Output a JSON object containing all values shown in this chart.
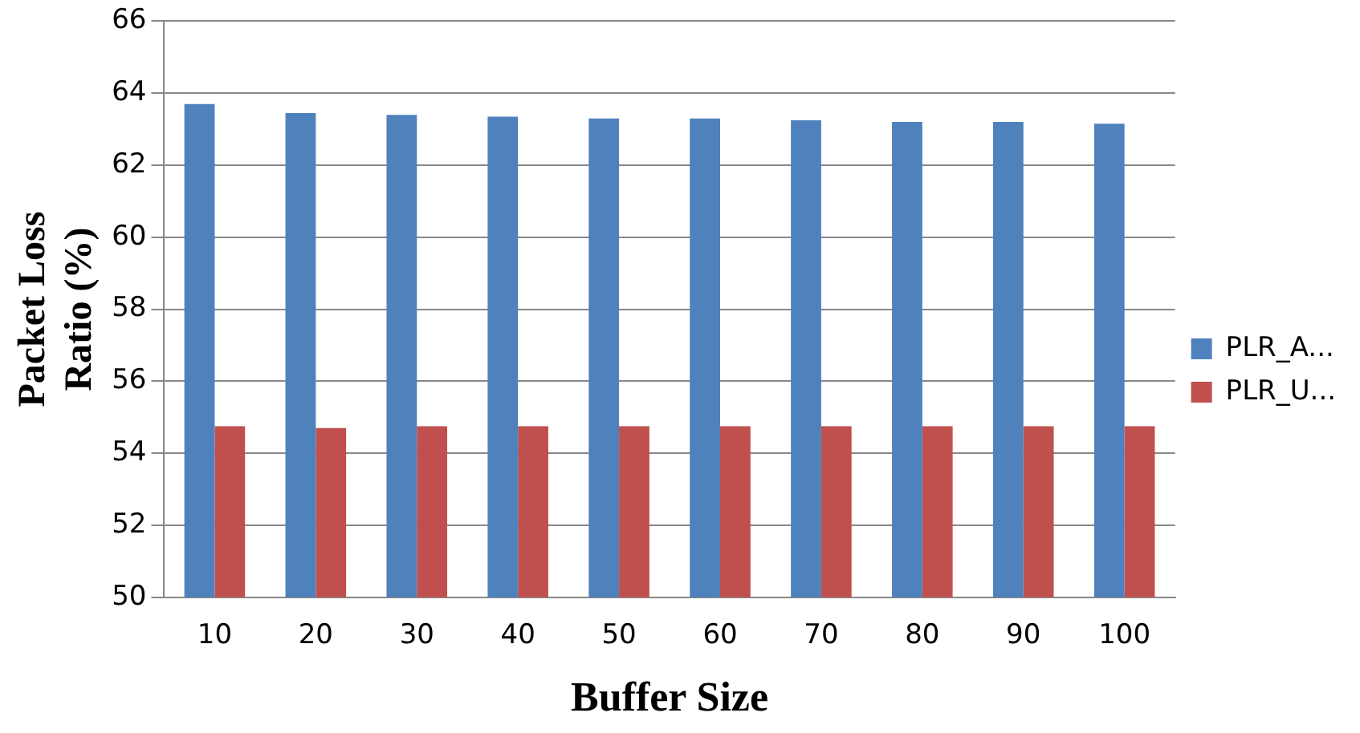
{
  "chart_data": {
    "type": "bar",
    "xlabel": "Buffer Size",
    "ylabel": "Packet Loss Ratio (%)",
    "categories": [
      "10",
      "20",
      "30",
      "40",
      "50",
      "60",
      "70",
      "80",
      "90",
      "100"
    ],
    "series": [
      {
        "name": "PLR_A...",
        "color": "#4f81bd",
        "values": [
          63.7,
          63.45,
          63.4,
          63.35,
          63.3,
          63.3,
          63.25,
          63.2,
          63.2,
          63.15
        ]
      },
      {
        "name": "PLR_U...",
        "color": "#c0504d",
        "values": [
          54.75,
          54.7,
          54.75,
          54.75,
          54.75,
          54.75,
          54.75,
          54.75,
          54.75,
          54.75
        ]
      }
    ],
    "ylim": [
      50,
      66
    ],
    "yticks": [
      50,
      52,
      54,
      56,
      58,
      60,
      62,
      64,
      66
    ],
    "grid": "y",
    "legend": "right"
  }
}
